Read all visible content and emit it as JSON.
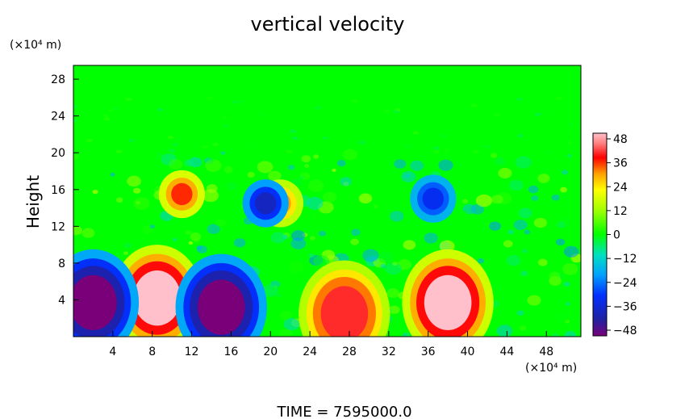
{
  "chart_data": {
    "type": "heatmap",
    "title": "vertical velocity",
    "ylabel": "Height",
    "y_unit": "(×10⁴ m)",
    "x_unit": "(×10⁴ m)",
    "xlim": [
      0,
      51.5
    ],
    "ylim": [
      0,
      29.5
    ],
    "x_ticks": [
      "4",
      "8",
      "12",
      "16",
      "20",
      "24",
      "28",
      "32",
      "36",
      "40",
      "44",
      "48"
    ],
    "y_ticks": [
      "4",
      "8",
      "12",
      "16",
      "20",
      "24",
      "28"
    ],
    "colorbar": {
      "ticks": [
        "48",
        "36",
        "24",
        "12",
        "0",
        "−12",
        "−24",
        "−36",
        "−48"
      ],
      "range": [
        -48,
        48
      ]
    },
    "features": [
      {
        "label": "updraft",
        "x": 8.5,
        "y": 4.2,
        "value": 48
      },
      {
        "label": "updraft",
        "x": 38.0,
        "y": 3.7,
        "value": 48
      },
      {
        "label": "updraft",
        "x": 27.5,
        "y": 2.5,
        "value": 40
      },
      {
        "label": "updraft",
        "x": 11.0,
        "y": 15.5,
        "value": 36
      },
      {
        "label": "updraft",
        "x": 21.0,
        "y": 14.5,
        "value": 30
      },
      {
        "label": "downdraft",
        "x": 2.0,
        "y": 3.7,
        "value": -48
      },
      {
        "label": "downdraft",
        "x": 15.0,
        "y": 3.2,
        "value": -48
      },
      {
        "label": "downdraft",
        "x": 19.5,
        "y": 14.5,
        "value": -36
      },
      {
        "label": "downdraft",
        "x": 36.5,
        "y": 15.0,
        "value": -30
      }
    ]
  },
  "footer": {
    "time_text": "TIME = 7595000.0"
  },
  "colors": {
    "background": "#00ff00",
    "extreme_positive": "#ffb6c1",
    "extreme_negative": "#800080"
  }
}
